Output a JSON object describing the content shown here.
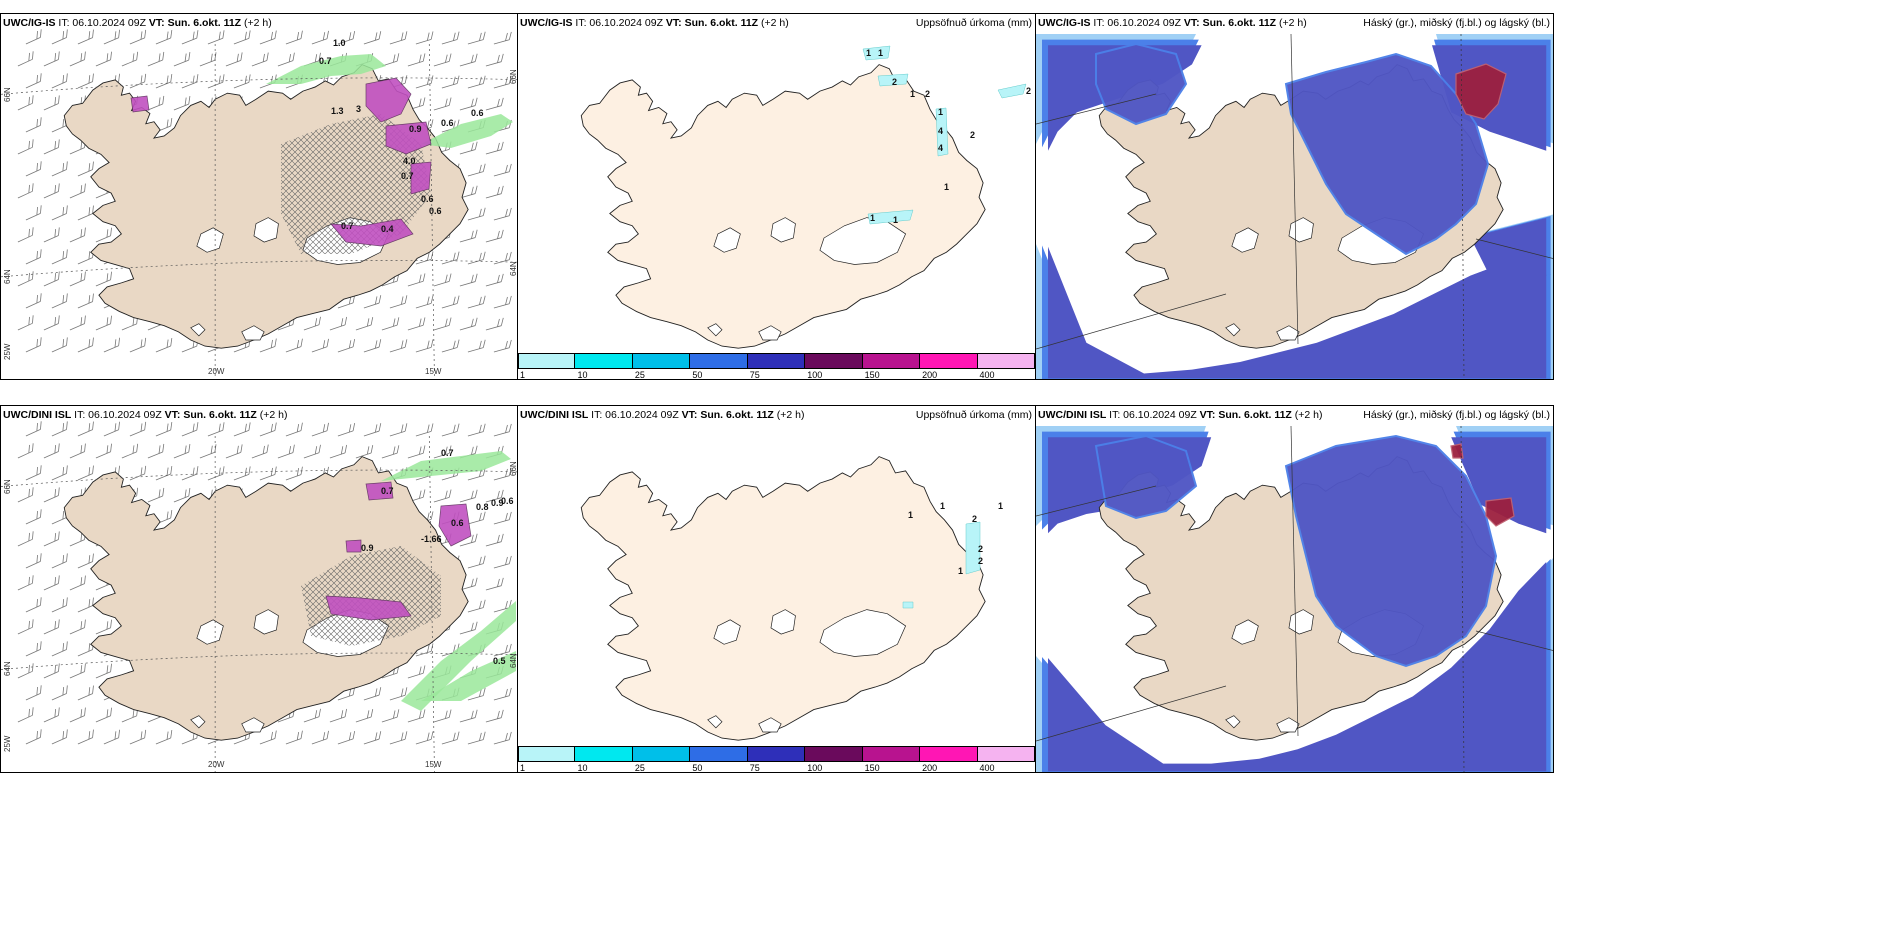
{
  "panels": [
    {
      "id": "p1",
      "model": "UWC/IG-IS",
      "it": "IT: 06.10.2024 09Z",
      "vt_label": "VT:",
      "vt": "Sun. 6.okt. 11Z",
      "lead": "(+2 h)",
      "right_title": "",
      "type": "wind",
      "lon_labels": [
        "20W",
        "15W"
      ],
      "lat_labels": [
        "66N",
        "64N"
      ],
      "lon_labels_left": [
        "25W"
      ],
      "values": [
        "1.0",
        "0.7",
        "0.6",
        "0.6",
        "0.9",
        "1.3",
        "0.7",
        "0.6",
        "4.0",
        "3",
        "0.7",
        "0.4",
        "0.6"
      ]
    },
    {
      "id": "p2",
      "model": "UWC/IG-IS",
      "it": "IT: 06.10.2024 09Z",
      "vt_label": "VT:",
      "vt": "Sun. 6.okt. 11Z",
      "lead": "(+2 h)",
      "right_title": "Uppsöfnuð úrkoma (mm)",
      "type": "precip",
      "values": [
        "1",
        "1",
        "2",
        "1",
        "2",
        "1",
        "4",
        "4",
        "2",
        "2",
        "1",
        "1",
        "1"
      ]
    },
    {
      "id": "p3",
      "model": "UWC/IG-IS",
      "it": "IT: 06.10.2024 09Z",
      "vt_label": "VT:",
      "vt": "Sun. 6.okt. 11Z",
      "lead": "(+2 h)",
      "right_title": "Háský (gr.), miðský (fj.bl.) og lágský (bl.)",
      "type": "cloud"
    },
    {
      "id": "p4",
      "model": "UWC/DINI ISL",
      "it": "IT: 06.10.2024 09Z",
      "vt_label": "VT:",
      "vt": "Sun. 6.okt. 11Z",
      "lead": "(+2 h)",
      "right_title": "",
      "type": "wind",
      "lon_labels": [
        "20W",
        "15W"
      ],
      "lat_labels": [
        "66N",
        "64N"
      ],
      "lon_labels_left": [
        "25W"
      ],
      "values": [
        "0.7",
        "0.8",
        "0.9",
        "0.6",
        "-1.66",
        "0.6",
        "0.5",
        "0.7",
        "0.9"
      ]
    },
    {
      "id": "p5",
      "model": "UWC/DINI ISL",
      "it": "IT: 06.10.2024 09Z",
      "vt_label": "VT:",
      "vt": "Sun. 6.okt. 11Z",
      "lead": "(+2 h)",
      "right_title": "Uppsöfnuð úrkoma (mm)",
      "type": "precip",
      "values": [
        "1",
        "1",
        "1",
        "2",
        "1",
        "2",
        "2"
      ]
    },
    {
      "id": "p6",
      "model": "UWC/DINI ISL",
      "it": "IT: 06.10.2024 09Z",
      "vt_label": "VT:",
      "vt": "Sun. 6.okt. 11Z",
      "lead": "(+2 h)",
      "right_title": "Háský (gr.), miðský (fj.bl.) og lágský (bl.)",
      "type": "cloud"
    }
  ],
  "colorbar": {
    "ticks": [
      "1",
      "10",
      "25",
      "50",
      "75",
      "100",
      "150",
      "200",
      "400"
    ],
    "colors": [
      "#b8f4f8",
      "#00e8ef",
      "#00bfe9",
      "#2e6de6",
      "#2e2fb9",
      "#6a0a5c",
      "#b8138f",
      "#ff16b4",
      "#f5b3f0"
    ]
  },
  "colors": {
    "land": "#e9d8c5",
    "land_precip": "#fdf0e2",
    "glacier": "#ffffff",
    "cloud_low": "#5056c4",
    "cloud_mid": "#4b80e9",
    "cloud_high": "#a0d0f5",
    "cloud_red": "#9c203f",
    "precip_green": "#9ae89a",
    "precip_magenta": "#c050c0"
  }
}
